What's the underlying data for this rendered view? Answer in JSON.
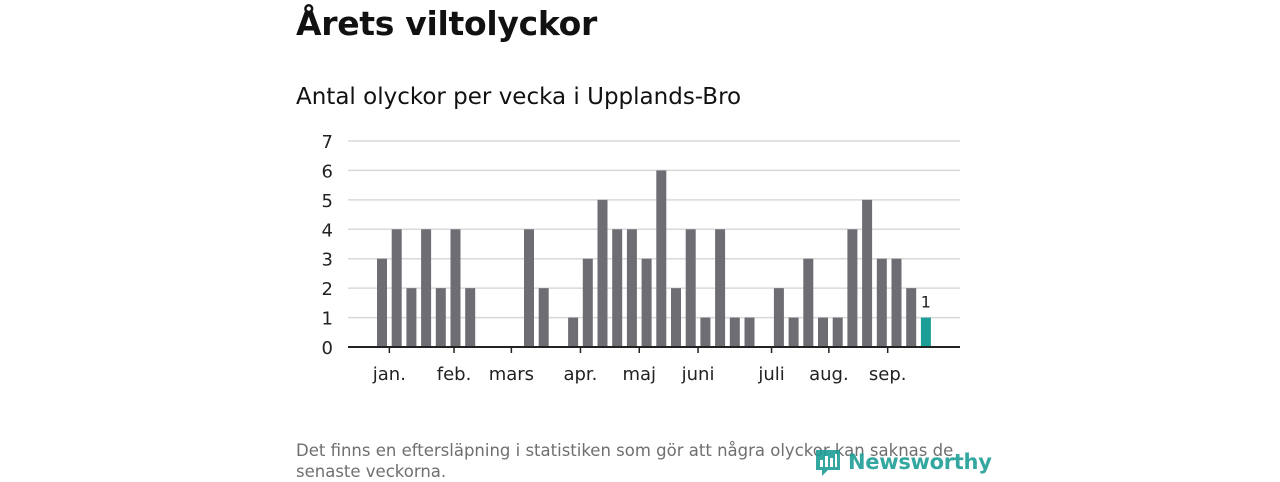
{
  "header": {
    "title": "Årets viltolyckor",
    "subtitle": "Antal olyckor per vecka i Upplands-Bro"
  },
  "chart_data": {
    "type": "bar",
    "title": "Antal olyckor per vecka i Upplands-Bro",
    "xlabel": "",
    "ylabel": "",
    "ylim": [
      0,
      7
    ],
    "yticks": [
      0,
      1,
      2,
      3,
      4,
      5,
      6,
      7
    ],
    "grid": true,
    "x": [
      1,
      2,
      3,
      4,
      5,
      6,
      7,
      8,
      9,
      10,
      11,
      12,
      13,
      14,
      15,
      16,
      17,
      18,
      19,
      20,
      21,
      22,
      23,
      24,
      25,
      26,
      27,
      28,
      29,
      30,
      31,
      32,
      33,
      34,
      35,
      36,
      37,
      38
    ],
    "values": [
      3,
      4,
      2,
      4,
      2,
      4,
      2,
      0,
      0,
      0,
      4,
      2,
      0,
      1,
      3,
      5,
      4,
      4,
      3,
      6,
      2,
      4,
      1,
      4,
      1,
      1,
      0,
      2,
      1,
      3,
      1,
      1,
      4,
      5,
      3,
      3,
      2,
      1
    ],
    "month_ticks": [
      {
        "label": "jan.",
        "week": 1.5
      },
      {
        "label": "feb.",
        "week": 5.9
      },
      {
        "label": "mars",
        "week": 9.8
      },
      {
        "label": "apr.",
        "week": 14.5
      },
      {
        "label": "maj",
        "week": 18.5
      },
      {
        "label": "juni",
        "week": 22.5
      },
      {
        "label": "juli",
        "week": 27.5
      },
      {
        "label": "aug.",
        "week": 31.4
      },
      {
        "label": "sep.",
        "week": 35.4
      }
    ],
    "highlight_index": 37,
    "highlight_label": "1",
    "colors": {
      "bar": "#6e6d73",
      "highlight": "#1a9e96",
      "grid": "#d9d9d9",
      "axis": "#222222"
    }
  },
  "footnote": "Det finns en eftersläpning i statistiken som gör att några olyckor kan saknas de senaste veckorna.",
  "brand": {
    "name": "Newsworthy",
    "icon": "newsworthy-logo-icon",
    "color": "#1d9e96"
  }
}
